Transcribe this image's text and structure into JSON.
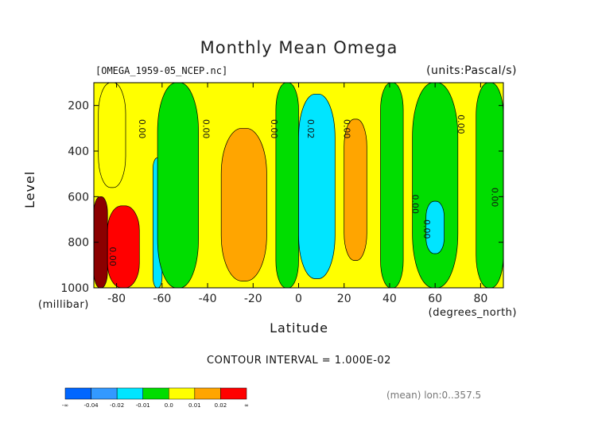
{
  "title": "Monthly Mean Omega",
  "file_label": "[OMEGA_1959-05_NCEP.nc]",
  "units_label": "(units:Pascal/s)",
  "y_axis_label": "Level",
  "y_axis_unit": "(millibar)",
  "x_axis_label": "Latitude",
  "x_axis_unit": "(degrees_north)",
  "contour_interval": "CONTOUR INTERVAL = 1.000E-02",
  "mean_note": "(mean) lon:0..357.5",
  "colors": {
    "c1": "#0066ff",
    "c2": "#3399ff",
    "c3": "#00e5ff",
    "c4": "#00dd00",
    "c5": "#ffff00",
    "c6": "#ffa500",
    "c7": "#ff0000",
    "c8": "#8b0000"
  },
  "chart_data": {
    "type": "heatmap",
    "title": "Monthly Mean Omega",
    "xlabel": "Latitude",
    "ylabel": "Level",
    "xlim": [
      -90,
      90
    ],
    "ylim": [
      1000,
      100
    ],
    "x_ticks": [
      "-80",
      "-60",
      "-40",
      "-20",
      "0",
      "20",
      "40",
      "60",
      "80"
    ],
    "y_ticks": [
      "200",
      "400",
      "600",
      "800",
      "1000"
    ],
    "colorbar_labels": [
      "-∞",
      "-0.04",
      "-0.02",
      "-0.01",
      "0.0",
      "0.01",
      "0.02",
      "∞"
    ],
    "contour_labels": [
      "0.00",
      "0.00",
      "0.00",
      "0.02",
      "0.00",
      "0.00",
      "0.00",
      "0.00",
      "0.00",
      "0.00"
    ],
    "levels": [
      -0.04,
      -0.03,
      -0.02,
      -0.01,
      0.0,
      0.01,
      0.02,
      0.03
    ],
    "bands": [
      {
        "lat_min": -90,
        "lat_max": -84,
        "level_top": 600,
        "level_bot": 1000,
        "value": 0.04
      },
      {
        "lat_min": -84,
        "lat_max": -70,
        "level_top": 640,
        "level_bot": 1000,
        "value": 0.025
      },
      {
        "lat_min": -88,
        "lat_max": -76,
        "level_top": 100,
        "level_bot": 560,
        "value": 0.005
      },
      {
        "lat_min": -64,
        "lat_max": -60,
        "level_top": 430,
        "level_bot": 1000,
        "value": -0.015
      },
      {
        "lat_min": -62,
        "lat_max": -44,
        "level_top": 100,
        "level_bot": 1000,
        "value": -0.005
      },
      {
        "lat_min": -34,
        "lat_max": -14,
        "level_top": 300,
        "level_bot": 970,
        "value": 0.015
      },
      {
        "lat_min": -10,
        "lat_max": 0,
        "level_top": 100,
        "level_bot": 1000,
        "value": -0.005
      },
      {
        "lat_min": 0,
        "lat_max": 16,
        "level_top": 150,
        "level_bot": 960,
        "value": -0.018
      },
      {
        "lat_min": 20,
        "lat_max": 30,
        "level_top": 260,
        "level_bot": 880,
        "value": 0.012
      },
      {
        "lat_min": 36,
        "lat_max": 46,
        "level_top": 100,
        "level_bot": 1000,
        "value": -0.005
      },
      {
        "lat_min": 50,
        "lat_max": 70,
        "level_top": 100,
        "level_bot": 1000,
        "value": -0.005
      },
      {
        "lat_min": 56,
        "lat_max": 64,
        "level_top": 620,
        "level_bot": 850,
        "value": -0.015
      },
      {
        "lat_min": 78,
        "lat_max": 90,
        "level_top": 100,
        "level_bot": 1000,
        "value": -0.005
      }
    ]
  }
}
